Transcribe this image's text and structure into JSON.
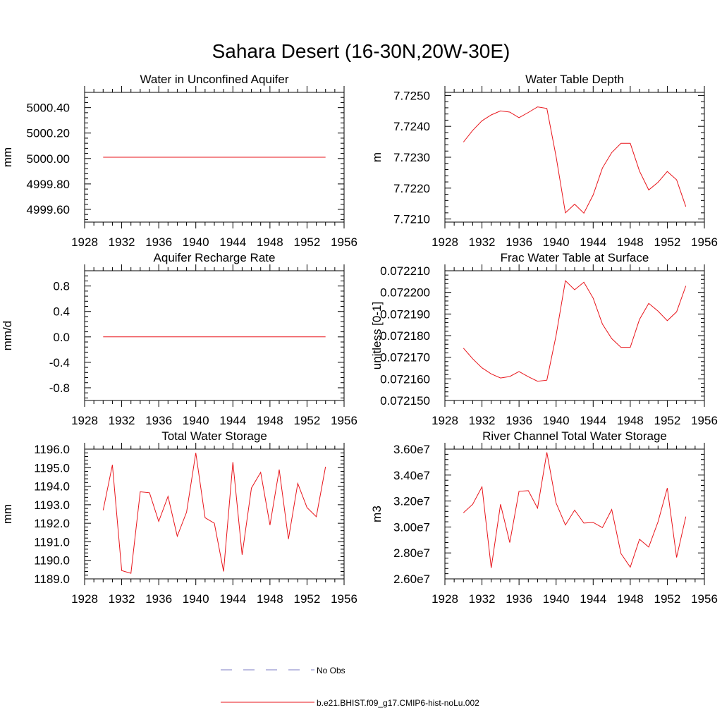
{
  "figure": {
    "title": "Sahara Desert (16-30N,20W-30E)"
  },
  "legend": {
    "entries": [
      {
        "label": "No Obs",
        "color": "#7b7bc4",
        "dash": true
      },
      {
        "label": "b.e21.BHIST.f09_g17.CMIP6-hist-noLu.002",
        "color": "#e8151b",
        "dash": false
      }
    ]
  },
  "colors": {
    "series": "#e8151b",
    "axis": "#000000"
  },
  "chart_data": [
    {
      "type": "line",
      "title": "Water in Unconfined Aquifer",
      "ylabel": "mm",
      "xlim": [
        1928,
        1956
      ],
      "ylim": [
        4999.5,
        5000.52
      ],
      "xticks": [
        1928,
        1932,
        1936,
        1940,
        1944,
        1948,
        1952,
        1956
      ],
      "yticks": [
        4999.6,
        4999.8,
        5000.0,
        5000.2,
        5000.4
      ],
      "ytick_labels": [
        "4999.60",
        "4999.80",
        "5000.00",
        "5000.20",
        "5000.40"
      ],
      "x": [
        1930,
        1931,
        1932,
        1933,
        1934,
        1935,
        1936,
        1937,
        1938,
        1939,
        1940,
        1941,
        1942,
        1943,
        1944,
        1945,
        1946,
        1947,
        1948,
        1949,
        1950,
        1951,
        1952,
        1953,
        1954
      ],
      "values": [
        5000.01,
        5000.01,
        5000.01,
        5000.01,
        5000.01,
        5000.01,
        5000.01,
        5000.01,
        5000.01,
        5000.01,
        5000.01,
        5000.01,
        5000.01,
        5000.01,
        5000.01,
        5000.01,
        5000.01,
        5000.01,
        5000.01,
        5000.01,
        5000.01,
        5000.01,
        5000.01,
        5000.01,
        5000.01
      ]
    },
    {
      "type": "line",
      "title": "Water Table Depth",
      "ylabel": "m",
      "xlim": [
        1928,
        1956
      ],
      "ylim": [
        7.7209,
        7.7251
      ],
      "xticks": [
        1928,
        1932,
        1936,
        1940,
        1944,
        1948,
        1952,
        1956
      ],
      "yticks": [
        7.721,
        7.722,
        7.723,
        7.724,
        7.725
      ],
      "ytick_labels": [
        "7.7210",
        "7.7220",
        "7.7230",
        "7.7240",
        "7.7250"
      ],
      "x": [
        1930,
        1931,
        1932,
        1933,
        1934,
        1935,
        1936,
        1937,
        1938,
        1939,
        1940,
        1941,
        1942,
        1943,
        1944,
        1945,
        1946,
        1947,
        1948,
        1949,
        1950,
        1951,
        1952,
        1953,
        1954
      ],
      "values": [
        7.72349,
        7.72387,
        7.72418,
        7.72437,
        7.7245,
        7.72446,
        7.72428,
        7.72445,
        7.72463,
        7.72458,
        7.72302,
        7.7212,
        7.72148,
        7.72119,
        7.72178,
        7.72265,
        7.72315,
        7.72345,
        7.72345,
        7.72255,
        7.72194,
        7.72219,
        7.72254,
        7.72227,
        7.7214
      ]
    },
    {
      "type": "line",
      "title": "Aquifer Recharge Rate",
      "ylabel": "mm/d",
      "xlim": [
        1928,
        1956
      ],
      "ylim": [
        -1.0,
        1.04
      ],
      "xticks": [
        1928,
        1932,
        1936,
        1940,
        1944,
        1948,
        1952,
        1956
      ],
      "yticks": [
        -0.8,
        -0.4,
        0.0,
        0.4,
        0.8
      ],
      "ytick_labels": [
        "-0.8",
        "-0.4",
        "0.0",
        "0.4",
        "0.8"
      ],
      "x": [
        1930,
        1931,
        1932,
        1933,
        1934,
        1935,
        1936,
        1937,
        1938,
        1939,
        1940,
        1941,
        1942,
        1943,
        1944,
        1945,
        1946,
        1947,
        1948,
        1949,
        1950,
        1951,
        1952,
        1953,
        1954
      ],
      "values": [
        0,
        0,
        0,
        0,
        0,
        0,
        0,
        0,
        0,
        0,
        0,
        0,
        0,
        0,
        0,
        0,
        0,
        0,
        0,
        0,
        0,
        0,
        0,
        0,
        0
      ]
    },
    {
      "type": "line",
      "title": "Frac Water Table at Surface",
      "ylabel": "unitless [0-1]",
      "xlim": [
        1928,
        1956
      ],
      "ylim": [
        0.07215,
        0.07221
      ],
      "xticks": [
        1928,
        1932,
        1936,
        1940,
        1944,
        1948,
        1952,
        1956
      ],
      "yticks": [
        0.07215,
        0.07216,
        0.07217,
        0.07218,
        0.07219,
        0.0722,
        0.07221
      ],
      "ytick_labels": [
        "0.072150",
        "0.072160",
        "0.072170",
        "0.072180",
        "0.072190",
        "0.072200",
        "0.072210"
      ],
      "x": [
        1930,
        1931,
        1932,
        1933,
        1934,
        1935,
        1936,
        1937,
        1938,
        1939,
        1940,
        1941,
        1942,
        1943,
        1944,
        1945,
        1946,
        1947,
        1948,
        1949,
        1950,
        1951,
        1952,
        1953,
        1954
      ],
      "values": [
        0.0721742,
        0.0721693,
        0.0721651,
        0.0721623,
        0.0721604,
        0.0721611,
        0.0721634,
        0.072161,
        0.0721589,
        0.0721594,
        0.0721801,
        0.0722054,
        0.0722012,
        0.0722047,
        0.0721973,
        0.0721853,
        0.0721786,
        0.0721746,
        0.0721746,
        0.0721875,
        0.0721949,
        0.0721913,
        0.0721869,
        0.072191,
        0.072203
      ]
    },
    {
      "type": "line",
      "title": "Total Water Storage",
      "ylabel": "mm",
      "xlim": [
        1928,
        1956
      ],
      "ylim": [
        1189.0,
        1196.0
      ],
      "xticks": [
        1928,
        1932,
        1936,
        1940,
        1944,
        1948,
        1952,
        1956
      ],
      "yticks": [
        1189.0,
        1190.0,
        1191.0,
        1192.0,
        1193.0,
        1194.0,
        1195.0,
        1196.0
      ],
      "ytick_labels": [
        "1189.0",
        "1190.0",
        "1191.0",
        "1192.0",
        "1193.0",
        "1194.0",
        "1195.0",
        "1196.0"
      ],
      "x": [
        1930,
        1931,
        1932,
        1933,
        1934,
        1935,
        1936,
        1937,
        1938,
        1939,
        1940,
        1941,
        1942,
        1943,
        1944,
        1945,
        1946,
        1947,
        1948,
        1949,
        1950,
        1951,
        1952,
        1953,
        1954
      ],
      "values": [
        1192.7,
        1195.15,
        1189.45,
        1189.3,
        1193.7,
        1193.65,
        1192.1,
        1193.45,
        1191.3,
        1192.6,
        1195.8,
        1192.3,
        1192.0,
        1189.4,
        1195.3,
        1190.3,
        1193.9,
        1194.75,
        1191.9,
        1194.9,
        1191.15,
        1194.15,
        1192.85,
        1192.35,
        1195.05
      ]
    },
    {
      "type": "line",
      "title": "River Channel Total Water Storage",
      "ylabel": "m3",
      "xlim": [
        1928,
        1956
      ],
      "ylim": [
        26000000,
        36000000
      ],
      "xticks": [
        1928,
        1932,
        1936,
        1940,
        1944,
        1948,
        1952,
        1956
      ],
      "yticks": [
        26000000,
        28000000,
        30000000,
        32000000,
        34000000,
        36000000
      ],
      "ytick_labels": [
        "2.60e7",
        "2.80e7",
        "3.00e7",
        "3.20e7",
        "3.40e7",
        "3.60e7"
      ],
      "x": [
        1930,
        1931,
        1932,
        1933,
        1934,
        1935,
        1936,
        1937,
        1938,
        1939,
        1940,
        1941,
        1942,
        1943,
        1944,
        1945,
        1946,
        1947,
        1948,
        1949,
        1950,
        1951,
        1952,
        1953,
        1954
      ],
      "values": [
        31100000,
        31750000,
        33100000,
        26850000,
        31750000,
        28800000,
        32750000,
        32800000,
        31450000,
        35750000,
        31850000,
        30150000,
        31300000,
        30300000,
        30350000,
        29950000,
        31350000,
        27950000,
        26900000,
        29050000,
        28450000,
        30400000,
        33000000,
        27650000,
        30800000
      ]
    }
  ]
}
